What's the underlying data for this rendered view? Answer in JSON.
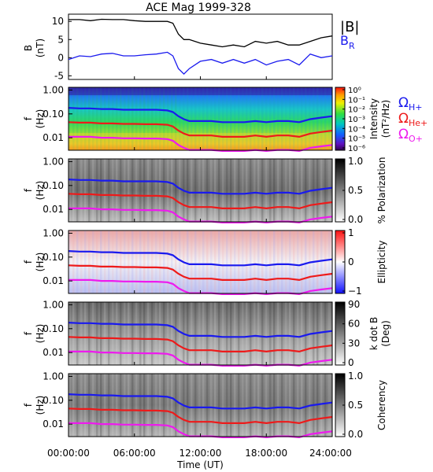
{
  "title": "ACE Mag 1999-328",
  "xaxis": {
    "label": "Time (UT)",
    "ticks": [
      "00:00:00",
      "06:00:00",
      "12:00:00",
      "18:00:00",
      "24:00:00"
    ],
    "range_hours": [
      0,
      24
    ]
  },
  "colors": {
    "B_total": "#000000",
    "B_R": "#1a1aee",
    "H_plus": "#1a1aee",
    "He_plus": "#ee1a1a",
    "O_plus": "#ee1aee"
  },
  "panel1": {
    "ylabel_line1": "B",
    "ylabel_line2": "(nT)",
    "legend_total": "|B|",
    "legend_R_main": "B",
    "legend_R_sub": "R"
  },
  "legend_gyro": {
    "H": {
      "omega": "Ω",
      "sub": "H+"
    },
    "He": {
      "omega": "Ω",
      "sub": "He+"
    },
    "O": {
      "omega": "Ω",
      "sub": "O+"
    }
  },
  "freq_panels": [
    {
      "name": "intensity",
      "ylabel_line1": "f",
      "ylabel_line2": "(Hz)",
      "colorbar_label_1": "Intensity",
      "colorbar_label_2": "(nT²/Hz)",
      "colorbar_ticks": [
        "10⁰",
        "10⁻¹",
        "10⁻²",
        "10⁻³",
        "10⁻⁴",
        "10⁻⁵",
        "10⁻⁶"
      ],
      "colorbar_type": "rainbow"
    },
    {
      "name": "polarization",
      "ylabel_line1": "f",
      "ylabel_line2": "(Hz)",
      "colorbar_label_1": "% Polarization",
      "colorbar_label_2": "",
      "colorbar_ticks": [
        "1.0",
        "0.5",
        "0.0"
      ],
      "colorbar_type": "gray"
    },
    {
      "name": "ellipticity",
      "ylabel_line1": "f",
      "ylabel_line2": "(Hz)",
      "colorbar_label_1": "Ellipticity",
      "colorbar_label_2": "",
      "colorbar_ticks": [
        "1",
        "0",
        "−1"
      ],
      "colorbar_type": "bwr"
    },
    {
      "name": "kdotb",
      "ylabel_line1": "f",
      "ylabel_line2": "(Hz)",
      "colorbar_label_1": "k dot B",
      "colorbar_label_2": "(Deg)",
      "colorbar_ticks": [
        "90",
        "60",
        "30",
        "0"
      ],
      "colorbar_type": "gray"
    },
    {
      "name": "coherency",
      "ylabel_line1": "f",
      "ylabel_line2": "(Hz)",
      "colorbar_label_1": "Coherency",
      "colorbar_label_2": "",
      "colorbar_ticks": [
        "1.0",
        "0.5",
        "0.0"
      ],
      "colorbar_type": "gray"
    }
  ],
  "freq_ticks": [
    "1.00",
    "0.10",
    "0.01"
  ],
  "chart_data": {
    "type": "line",
    "title": "ACE Mag 1999-328",
    "xlabel": "Time (UT)",
    "x_hours": [
      0,
      1,
      2,
      3,
      4,
      5,
      6,
      7,
      8,
      9,
      9.5,
      10,
      10.5,
      11,
      12,
      13,
      14,
      15,
      16,
      17,
      18,
      19,
      20,
      21,
      22,
      23,
      24
    ],
    "magnetic_field": {
      "ylabel": "B (nT)",
      "ylim": [
        -6,
        12
      ],
      "yticks": [
        10,
        5,
        0,
        -5
      ],
      "series": [
        {
          "name": "|B|",
          "values": [
            10.5,
            10.5,
            10.2,
            10.6,
            10.5,
            10.5,
            10.2,
            10.0,
            10.0,
            10.0,
            9.5,
            6.5,
            5.0,
            5.0,
            4.0,
            3.5,
            3.0,
            3.5,
            3.0,
            4.5,
            4.0,
            4.5,
            3.5,
            3.5,
            4.5,
            5.5,
            6.0
          ]
        },
        {
          "name": "B_R",
          "values": [
            -0.5,
            0.5,
            0.3,
            1.0,
            1.2,
            0.5,
            0.5,
            0.8,
            1.0,
            1.5,
            0.5,
            -3.0,
            -4.5,
            -3.0,
            -1.0,
            -0.5,
            -1.5,
            -0.5,
            -1.5,
            -0.5,
            -2.0,
            -1.0,
            -0.5,
            -2.0,
            1.0,
            0.0,
            0.5
          ]
        }
      ]
    },
    "gyrofrequencies_hz": {
      "ylim": [
        0.003,
        1.3
      ],
      "yscale": "log",
      "series": [
        {
          "name": "ΩH+",
          "values": [
            0.18,
            0.17,
            0.17,
            0.16,
            0.16,
            0.15,
            0.15,
            0.15,
            0.15,
            0.14,
            0.12,
            0.08,
            0.06,
            0.05,
            0.05,
            0.05,
            0.045,
            0.045,
            0.045,
            0.05,
            0.045,
            0.05,
            0.05,
            0.045,
            0.06,
            0.07,
            0.08
          ]
        },
        {
          "name": "ΩHe+",
          "values": [
            0.045,
            0.043,
            0.043,
            0.04,
            0.04,
            0.038,
            0.038,
            0.037,
            0.037,
            0.035,
            0.03,
            0.02,
            0.015,
            0.0125,
            0.0125,
            0.0125,
            0.011,
            0.011,
            0.011,
            0.0125,
            0.011,
            0.0125,
            0.0125,
            0.011,
            0.015,
            0.0175,
            0.02
          ]
        },
        {
          "name": "ΩO+",
          "values": [
            0.011,
            0.011,
            0.011,
            0.01,
            0.01,
            0.0095,
            0.0095,
            0.0093,
            0.0093,
            0.0088,
            0.0075,
            0.005,
            0.0038,
            0.0031,
            0.0031,
            0.0031,
            0.0028,
            0.0028,
            0.0028,
            0.0031,
            0.0028,
            0.0031,
            0.0031,
            0.0028,
            0.0038,
            0.0044,
            0.005
          ]
        }
      ]
    }
  }
}
